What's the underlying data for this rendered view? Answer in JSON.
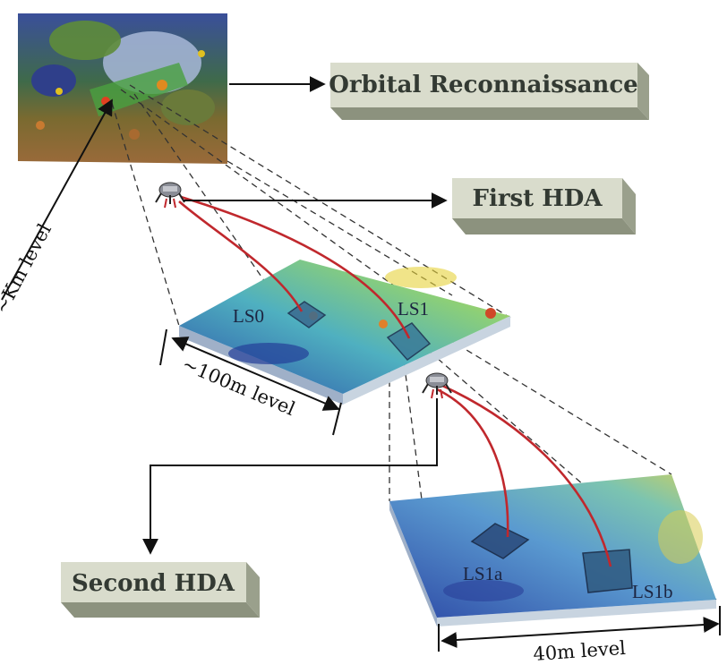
{
  "boxes": {
    "orbital": "Orbital Reconnaissance",
    "first_hda": "First HDA",
    "second_hda": "Second HDA"
  },
  "scales": {
    "km": "~Km level",
    "m100": "~100m level",
    "m40": "40m level"
  },
  "sites": {
    "ls0": "LS0",
    "ls1": "LS1",
    "ls1a": "LS1a",
    "ls1b": "LS1b"
  },
  "colors": {
    "box_face": "#d9dccc",
    "box_side": "#9aa08c",
    "trajectory": "#c0282d",
    "terrain_low": "#2b4fa8",
    "terrain_mid": "#4fb0c0",
    "terrain_high": "#d8c83a"
  },
  "icons": [
    "lander-icon",
    "lander-icon"
  ]
}
